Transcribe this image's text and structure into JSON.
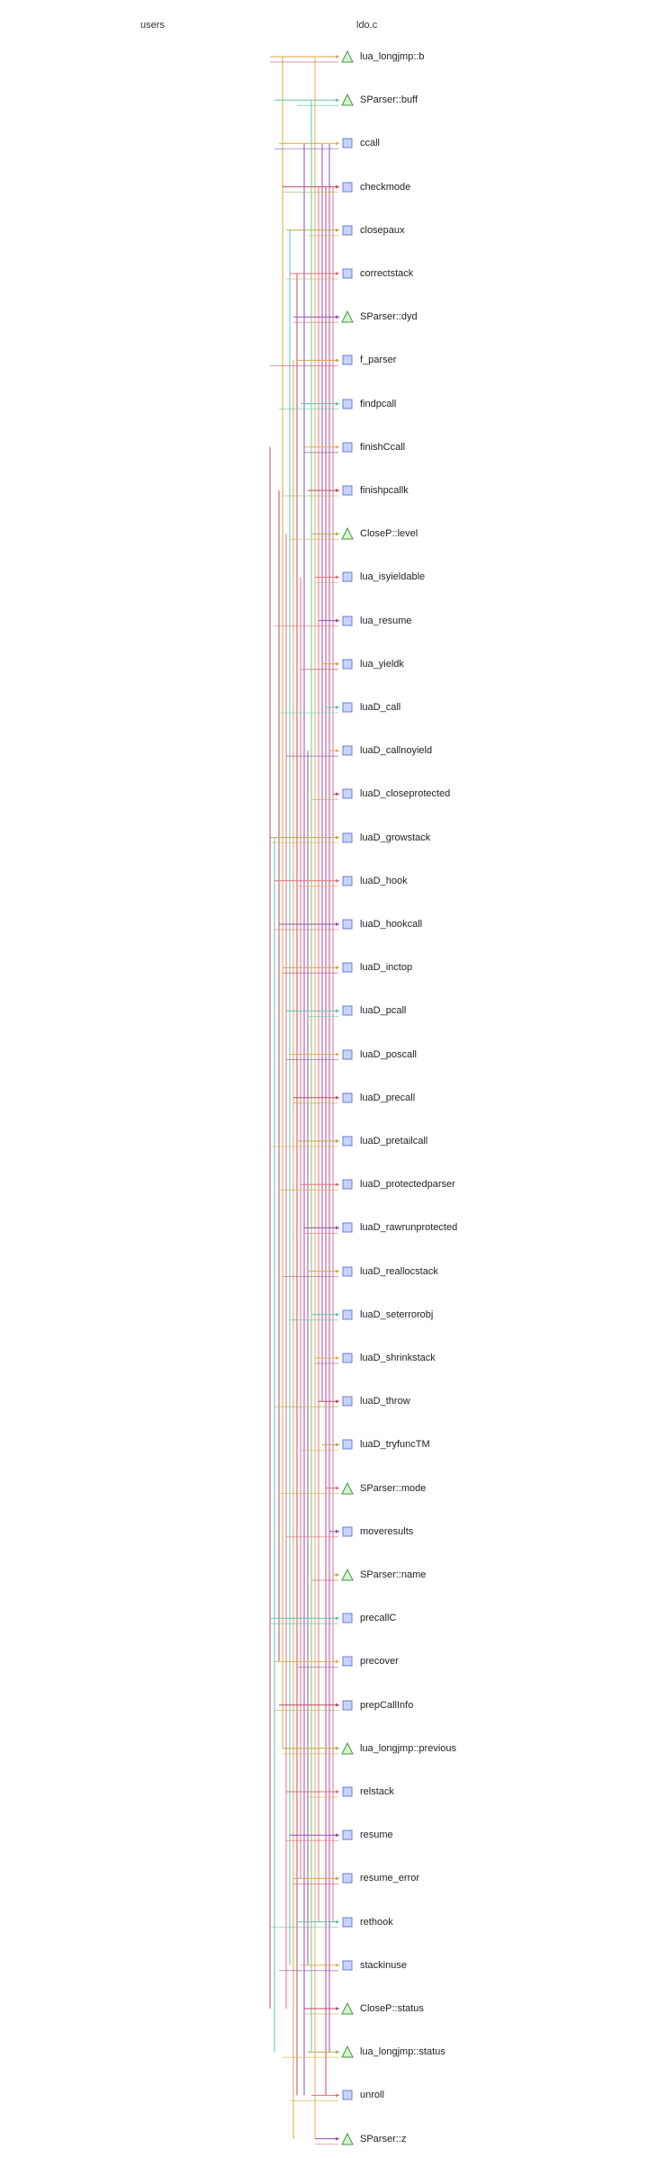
{
  "headers": {
    "users": "users",
    "file": "ldo.c"
  },
  "colors": {
    "function_fill": "#c8d4ff",
    "function_stroke": "#6b7bd6",
    "variable_fill": "#d7f2d2",
    "variable_stroke": "#3f9a3a",
    "edge_palette": [
      "#d9a441",
      "#e07080",
      "#c04a6a",
      "#5cc6b0",
      "#9a4ab8",
      "#b0b040",
      "#e0b050"
    ]
  },
  "nodes": [
    {
      "label": "lua_longjmp::b",
      "kind": "variable",
      "icon": "triangle-icon"
    },
    {
      "label": "SParser::buff",
      "kind": "variable",
      "icon": "triangle-icon"
    },
    {
      "label": "ccall",
      "kind": "function",
      "icon": "square-icon"
    },
    {
      "label": "checkmode",
      "kind": "function",
      "icon": "square-icon"
    },
    {
      "label": "closepaux",
      "kind": "function",
      "icon": "square-icon"
    },
    {
      "label": "correctstack",
      "kind": "function",
      "icon": "square-icon"
    },
    {
      "label": "SParser::dyd",
      "kind": "variable",
      "icon": "triangle-icon"
    },
    {
      "label": "f_parser",
      "kind": "function",
      "icon": "square-icon"
    },
    {
      "label": "findpcall",
      "kind": "function",
      "icon": "square-icon"
    },
    {
      "label": "finishCcall",
      "kind": "function",
      "icon": "square-icon"
    },
    {
      "label": "finishpcallk",
      "kind": "function",
      "icon": "square-icon"
    },
    {
      "label": "CloseP::level",
      "kind": "variable",
      "icon": "triangle-icon"
    },
    {
      "label": "lua_isyieldable",
      "kind": "function",
      "icon": "square-icon"
    },
    {
      "label": "lua_resume",
      "kind": "function",
      "icon": "square-icon"
    },
    {
      "label": "lua_yieldk",
      "kind": "function",
      "icon": "square-icon"
    },
    {
      "label": "luaD_call",
      "kind": "function",
      "icon": "square-icon"
    },
    {
      "label": "luaD_callnoyield",
      "kind": "function",
      "icon": "square-icon"
    },
    {
      "label": "luaD_closeprotected",
      "kind": "function",
      "icon": "square-icon"
    },
    {
      "label": "luaD_growstack",
      "kind": "function",
      "icon": "square-icon"
    },
    {
      "label": "luaD_hook",
      "kind": "function",
      "icon": "square-icon"
    },
    {
      "label": "luaD_hookcall",
      "kind": "function",
      "icon": "square-icon"
    },
    {
      "label": "luaD_inctop",
      "kind": "function",
      "icon": "square-icon"
    },
    {
      "label": "luaD_pcall",
      "kind": "function",
      "icon": "square-icon"
    },
    {
      "label": "luaD_poscall",
      "kind": "function",
      "icon": "square-icon"
    },
    {
      "label": "luaD_precall",
      "kind": "function",
      "icon": "square-icon"
    },
    {
      "label": "luaD_pretailcall",
      "kind": "function",
      "icon": "square-icon"
    },
    {
      "label": "luaD_protectedparser",
      "kind": "function",
      "icon": "square-icon"
    },
    {
      "label": "luaD_rawrunprotected",
      "kind": "function",
      "icon": "square-icon"
    },
    {
      "label": "luaD_reallocstack",
      "kind": "function",
      "icon": "square-icon"
    },
    {
      "label": "luaD_seterrorobj",
      "kind": "function",
      "icon": "square-icon"
    },
    {
      "label": "luaD_shrinkstack",
      "kind": "function",
      "icon": "square-icon"
    },
    {
      "label": "luaD_throw",
      "kind": "function",
      "icon": "square-icon"
    },
    {
      "label": "luaD_tryfuncTM",
      "kind": "function",
      "icon": "square-icon"
    },
    {
      "label": "SParser::mode",
      "kind": "variable",
      "icon": "triangle-icon"
    },
    {
      "label": "moveresults",
      "kind": "function",
      "icon": "square-icon"
    },
    {
      "label": "SParser::name",
      "kind": "variable",
      "icon": "triangle-icon"
    },
    {
      "label": "precallC",
      "kind": "function",
      "icon": "square-icon"
    },
    {
      "label": "precover",
      "kind": "function",
      "icon": "square-icon"
    },
    {
      "label": "prepCallInfo",
      "kind": "function",
      "icon": "square-icon"
    },
    {
      "label": "lua_longjmp::previous",
      "kind": "variable",
      "icon": "triangle-icon"
    },
    {
      "label": "relstack",
      "kind": "function",
      "icon": "square-icon"
    },
    {
      "label": "resume",
      "kind": "function",
      "icon": "square-icon"
    },
    {
      "label": "resume_error",
      "kind": "function",
      "icon": "square-icon"
    },
    {
      "label": "rethook",
      "kind": "function",
      "icon": "square-icon"
    },
    {
      "label": "stackinuse",
      "kind": "function",
      "icon": "square-icon"
    },
    {
      "label": "CloseP::status",
      "kind": "variable",
      "icon": "triangle-icon"
    },
    {
      "label": "lua_longjmp::status",
      "kind": "variable",
      "icon": "triangle-icon"
    },
    {
      "label": "unroll",
      "kind": "function",
      "icon": "square-icon"
    },
    {
      "label": "SParser::z",
      "kind": "variable",
      "icon": "triangle-icon"
    }
  ]
}
